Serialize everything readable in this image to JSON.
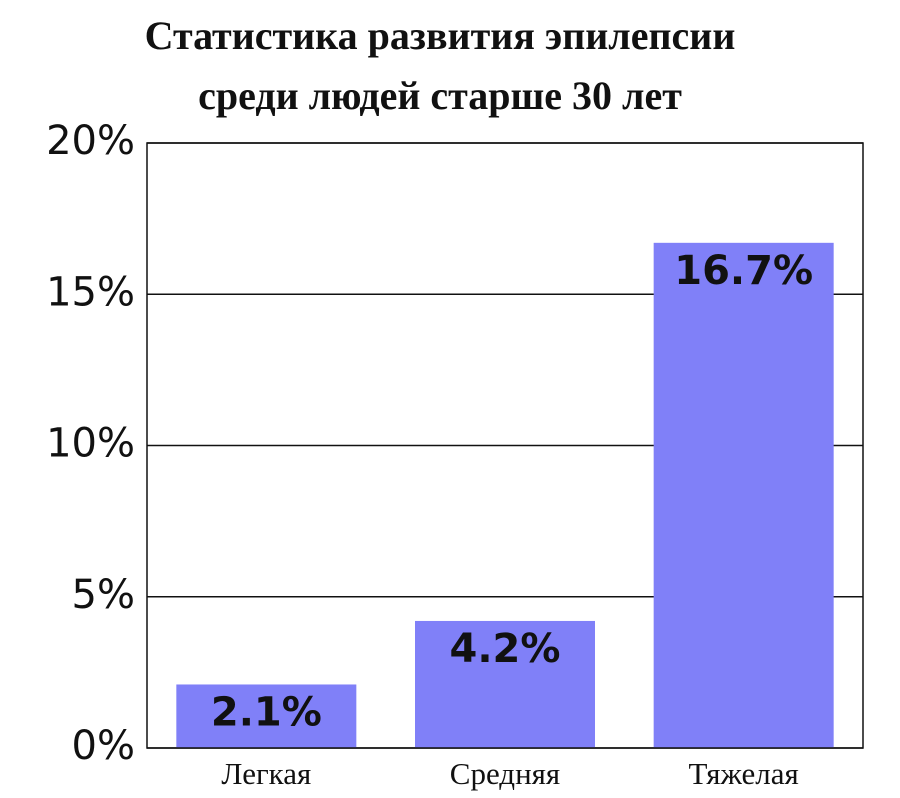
{
  "chart_data": {
    "type": "bar",
    "title": [
      "Статистика развития эпилепсии",
      "среди людей старше 30 лет"
    ],
    "categories": [
      "Легкая",
      "Средняя",
      "Тяжелая"
    ],
    "values": [
      2.1,
      4.2,
      16.7
    ],
    "value_labels": [
      "2.1%",
      "4.2%",
      "16.7%"
    ],
    "color": "#8080f8",
    "ylim": [
      0,
      20
    ],
    "yticks": [
      {
        "value": 0,
        "label": "0%"
      },
      {
        "value": 5,
        "label": "5%"
      },
      {
        "value": 10,
        "label": "10%"
      },
      {
        "value": 15,
        "label": "15%"
      },
      {
        "value": 20,
        "label": "20%"
      }
    ],
    "grid": true
  }
}
